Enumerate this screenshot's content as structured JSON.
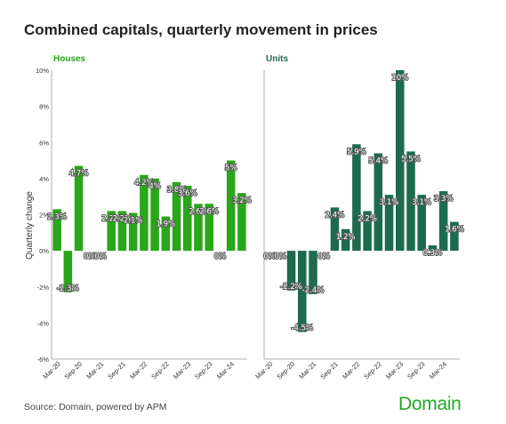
{
  "title": "Combined capitals, quarterly movement in prices",
  "source": "Source: Domain, powered by APM",
  "logo": "Domain",
  "colors": {
    "houses": "#2aa61a",
    "units": "#1d6b4e",
    "houses_title": "#2aa61a",
    "units_title": "#1d6b4e"
  },
  "chart_data": [
    {
      "type": "bar",
      "title": "Houses",
      "ylabel": "Quarterly change",
      "ylim": [
        -6,
        10
      ],
      "yticks": [
        "-6%",
        "-4%",
        "-2%",
        "0%",
        "2%",
        "4%",
        "6%",
        "8%",
        "10%"
      ],
      "xtick_labels": [
        "Mar-20",
        "Sep-20",
        "Mar-21",
        "Sep-21",
        "Mar-22",
        "Sep-22",
        "Mar-23",
        "Sep-23",
        "Mar-24"
      ],
      "categories": [
        "Mar-20",
        "Jun-20",
        "Sep-20",
        "Dec-20",
        "Mar-21",
        "Jun-21",
        "Sep-21",
        "Dec-21",
        "Mar-22",
        "Jun-22",
        "Sep-22",
        "Dec-22",
        "Mar-23",
        "Jun-23",
        "Sep-23",
        "Dec-23",
        "Mar-24",
        "Jun-24"
      ],
      "values": [
        2.3,
        -2.3,
        4.7,
        0,
        0,
        2.2,
        2.2,
        2.1,
        4.2,
        4,
        1.9,
        3.8,
        3.6,
        2.6,
        2.6,
        0,
        5,
        3.2
      ],
      "labels": [
        "2.3%",
        "-2.3%",
        "4.7%",
        "0%",
        "0%",
        "2.2%",
        "2.2%",
        "2.1%",
        "4.2%",
        "4%",
        "1.9%",
        "3.8%",
        "3.6%",
        "2.6%",
        "2.6%",
        "0%",
        "5%",
        "3.2%"
      ]
    },
    {
      "type": "bar",
      "title": "Units",
      "ylim": [
        -6,
        10
      ],
      "xtick_labels": [
        "Mar-20",
        "Sep-20",
        "Mar-21",
        "Sep-21",
        "Mar-22",
        "Sep-22",
        "Mar-23",
        "Sep-23",
        "Mar-24"
      ],
      "categories": [
        "Mar-20",
        "Jun-20",
        "Sep-20",
        "Dec-20",
        "Mar-21",
        "Jun-21",
        "Sep-21",
        "Dec-21",
        "Mar-22",
        "Jun-22",
        "Sep-22",
        "Dec-22",
        "Mar-23",
        "Jun-23",
        "Sep-23",
        "Dec-23",
        "Mar-24",
        "Jun-24"
      ],
      "values": [
        0,
        0,
        -2.2,
        -4.5,
        -2.4,
        0,
        2.4,
        1.2,
        5.9,
        2.2,
        5.4,
        3.1,
        10,
        5.5,
        3.1,
        0.3,
        3.3,
        1.6
      ],
      "labels": [
        "0%",
        "0%",
        "-2.2%",
        "-4.5%",
        "-2.4%",
        "0%",
        "2.4%",
        "1.2%",
        "5.9%",
        "2.2%",
        "5.4%",
        "3.1%",
        "10%",
        "5.5%",
        "3.1%",
        "0.3%",
        "3.3%",
        "1.6%"
      ]
    }
  ]
}
